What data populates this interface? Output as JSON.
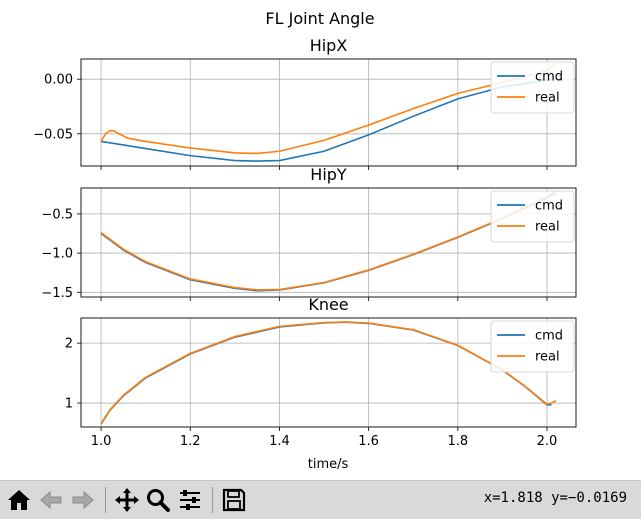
{
  "toolbar": {
    "buttons": [
      {
        "name": "home-button",
        "icon": "home-icon"
      },
      {
        "name": "back-button",
        "icon": "back-arrow-icon"
      },
      {
        "name": "forward-button",
        "icon": "forward-arrow-icon"
      },
      {
        "name": "pan-button",
        "icon": "move-icon"
      },
      {
        "name": "zoom-button",
        "icon": "zoom-icon"
      },
      {
        "name": "configure-subplots-button",
        "icon": "sliders-icon"
      },
      {
        "name": "save-button",
        "icon": "save-icon"
      }
    ],
    "coords_text": "x=1.818 y=−0.0169"
  },
  "chart_data": {
    "type": "line",
    "title": "FL Joint Angle",
    "xlabel": "time/s",
    "colors": {
      "cmd": "#1f77b4",
      "real": "#ff7f0e"
    },
    "subplots": [
      {
        "title": "HipX",
        "xlim": [
          0.955,
          2.065
        ],
        "ylim": [
          -0.0795,
          0.0185
        ],
        "yticks": [
          0.0,
          -0.05
        ],
        "ytick_labels": [
          "0.00",
          "−0.05"
        ],
        "legend": [
          "cmd",
          "real"
        ],
        "legend_loc": "upper right",
        "series": [
          {
            "name": "cmd",
            "x": [
              1.0,
              1.1,
              1.2,
              1.3,
              1.35,
              1.4,
              1.5,
              1.6,
              1.7,
              1.8,
              1.9,
              2.0,
              2.01
            ],
            "y": [
              -0.057,
              -0.0635,
              -0.07,
              -0.0745,
              -0.075,
              -0.0745,
              -0.066,
              -0.051,
              -0.034,
              -0.018,
              -0.007,
              -0.001,
              0.0
            ]
          },
          {
            "name": "real",
            "x": [
              1.0,
              1.01,
              1.02,
              1.03,
              1.04,
              1.06,
              1.1,
              1.2,
              1.3,
              1.35,
              1.4,
              1.5,
              1.6,
              1.7,
              1.8,
              1.9,
              2.0,
              2.01,
              2.02
            ],
            "y": [
              -0.057,
              -0.05,
              -0.047,
              -0.0475,
              -0.05,
              -0.054,
              -0.057,
              -0.063,
              -0.0675,
              -0.068,
              -0.066,
              -0.056,
              -0.042,
              -0.027,
              -0.013,
              -0.003,
              0.008,
              0.012,
              0.015
            ]
          }
        ]
      },
      {
        "title": "HipY",
        "xlim": [
          0.955,
          2.065
        ],
        "ylim": [
          -1.56,
          -0.17
        ],
        "yticks": [
          -0.5,
          -1.0,
          -1.5
        ],
        "ytick_labels": [
          "−0.5",
          "−1.0",
          "−1.5"
        ],
        "legend": [
          "cmd",
          "real"
        ],
        "legend_loc": "upper right",
        "series": [
          {
            "name": "cmd",
            "x": [
              1.0,
              1.05,
              1.1,
              1.2,
              1.3,
              1.35,
              1.4,
              1.5,
              1.6,
              1.7,
              1.8,
              1.9,
              2.0,
              2.01,
              2.02
            ],
            "y": [
              -0.75,
              -0.96,
              -1.12,
              -1.34,
              -1.45,
              -1.48,
              -1.47,
              -1.38,
              -1.22,
              -1.02,
              -0.8,
              -0.56,
              -0.3,
              -0.26,
              -0.24
            ]
          },
          {
            "name": "real",
            "x": [
              1.0,
              1.05,
              1.1,
              1.2,
              1.3,
              1.35,
              1.4,
              1.5,
              1.6,
              1.7,
              1.8,
              1.9,
              2.0,
              2.01,
              2.02
            ],
            "y": [
              -0.74,
              -0.95,
              -1.11,
              -1.33,
              -1.44,
              -1.47,
              -1.465,
              -1.375,
              -1.215,
              -1.015,
              -0.795,
              -0.555,
              -0.28,
              -0.24,
              -0.22
            ]
          }
        ]
      },
      {
        "title": "Knee",
        "xlim": [
          0.955,
          2.065
        ],
        "ylim": [
          0.6,
          2.42
        ],
        "yticks": [
          2,
          1
        ],
        "ytick_labels": [
          "2",
          "1"
        ],
        "xticks": [
          1.0,
          1.2,
          1.4,
          1.6,
          1.8,
          2.0
        ],
        "xtick_labels": [
          "1.0",
          "1.2",
          "1.4",
          "1.6",
          "1.8",
          "2.0"
        ],
        "legend": [
          "cmd",
          "real"
        ],
        "legend_loc": "upper right",
        "series": [
          {
            "name": "cmd",
            "x": [
              1.0,
              1.02,
              1.05,
              1.1,
              1.2,
              1.3,
              1.4,
              1.5,
              1.55,
              1.6,
              1.7,
              1.8,
              1.9,
              1.95,
              2.0,
              2.01
            ],
            "y": [
              0.65,
              0.88,
              1.12,
              1.42,
              1.82,
              2.1,
              2.27,
              2.34,
              2.35,
              2.33,
              2.22,
              1.96,
              1.55,
              1.28,
              0.97,
              0.97
            ]
          },
          {
            "name": "real",
            "x": [
              1.0,
              1.02,
              1.05,
              1.1,
              1.2,
              1.3,
              1.4,
              1.5,
              1.55,
              1.6,
              1.7,
              1.8,
              1.9,
              1.95,
              2.0,
              2.01,
              2.02
            ],
            "y": [
              0.66,
              0.89,
              1.13,
              1.43,
              1.83,
              2.11,
              2.28,
              2.345,
              2.355,
              2.335,
              2.225,
              1.965,
              1.555,
              1.285,
              0.98,
              1.0,
              1.04
            ]
          }
        ]
      }
    ]
  }
}
